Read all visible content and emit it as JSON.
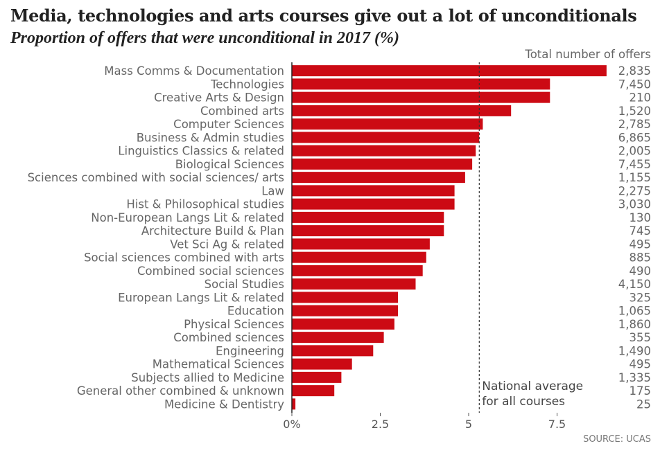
{
  "chart_data": {
    "type": "bar",
    "orientation": "horizontal",
    "title": "Media, technologies and arts courses give out a lot of unconditionals",
    "subtitle": "Proportion of offers that were unconditional in 2017 (%)",
    "totals_header": "Total number of offers",
    "categories": [
      "Mass Comms & Documentation",
      "Technologies",
      "Creative Arts & Design",
      "Combined arts",
      "Computer Sciences",
      "Business & Admin studies",
      "Linguistics Classics & related",
      "Biological Sciences",
      "Sciences combined with social sciences/ arts",
      "Law",
      "Hist & Philosophical studies",
      "Non-European Langs Lit & related",
      "Architecture Build & Plan",
      "Vet Sci Ag & related",
      "Social sciences combined with arts",
      "Combined social sciences",
      "Social Studies",
      "European Langs Lit & related",
      "Education",
      "Physical Sciences",
      "Combined sciences",
      "Engineering",
      "Mathematical Sciences",
      "Subjects allied to Medicine",
      "General other combined & unknown",
      "Medicine & Dentistry"
    ],
    "values": [
      8.9,
      7.3,
      7.3,
      6.2,
      5.4,
      5.3,
      5.2,
      5.1,
      4.9,
      4.6,
      4.6,
      4.3,
      4.3,
      3.9,
      3.8,
      3.7,
      3.5,
      3.0,
      3.0,
      2.9,
      2.6,
      2.3,
      1.7,
      1.4,
      1.2,
      0.1
    ],
    "totals": [
      "2,835",
      "7,450",
      "210",
      "1,520",
      "2,785",
      "6,865",
      "2,005",
      "7,455",
      "1,155",
      "2,275",
      "3,030",
      "130",
      "745",
      "495",
      "885",
      "490",
      "4,150",
      "325",
      "1,065",
      "1,860",
      "355",
      "1,490",
      "495",
      "1,335",
      "175",
      "25"
    ],
    "xlim": [
      0,
      9
    ],
    "xticks": [
      0,
      2.5,
      5,
      7.5
    ],
    "xtick_labels": [
      "0%",
      "2.5",
      "5",
      "7.5"
    ],
    "reference_line": {
      "value": 5.3,
      "label_lines": [
        "National average",
        "for all courses"
      ]
    },
    "bar_color": "#cc0a14",
    "source": "SOURCE: UCAS"
  }
}
